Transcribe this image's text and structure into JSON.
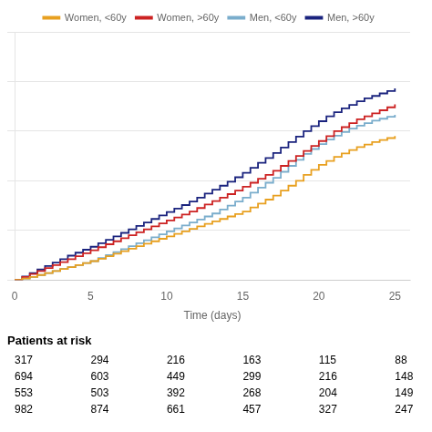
{
  "chart_data": {
    "type": "line",
    "line_style": "step",
    "xlabel": "Time (days)",
    "x": [
      0,
      0.5,
      1.0,
      1.5,
      2.0,
      2.5,
      3.0,
      3.5,
      4.0,
      4.5,
      5.0,
      5.5,
      6.0,
      6.5,
      7.0,
      7.5,
      8.0,
      8.5,
      9.0,
      9.5,
      10.0,
      10.5,
      11.0,
      11.5,
      12.0,
      12.5,
      13.0,
      13.5,
      14.0,
      14.5,
      15.0,
      15.5,
      16.0,
      16.5,
      17.0,
      17.5,
      18.0,
      18.5,
      19.0,
      19.5,
      20.0,
      20.5,
      21.0,
      21.5,
      22.0,
      22.5,
      23.0,
      23.5,
      24.0,
      24.5,
      25.0
    ],
    "series": [
      {
        "name": "Women, <60y",
        "color": "#E8A020",
        "values": [
          0,
          0.003,
          0.006,
          0.01,
          0.014,
          0.018,
          0.022,
          0.026,
          0.03,
          0.034,
          0.038,
          0.043,
          0.048,
          0.053,
          0.058,
          0.063,
          0.068,
          0.073,
          0.078,
          0.083,
          0.088,
          0.093,
          0.098,
          0.103,
          0.108,
          0.113,
          0.118,
          0.123,
          0.128,
          0.133,
          0.138,
          0.146,
          0.154,
          0.162,
          0.17,
          0.18,
          0.19,
          0.2,
          0.212,
          0.222,
          0.232,
          0.24,
          0.248,
          0.255,
          0.262,
          0.268,
          0.273,
          0.278,
          0.282,
          0.286,
          0.29
        ]
      },
      {
        "name": "Women, >60y",
        "color": "#CC2222",
        "values": [
          0,
          0.006,
          0.012,
          0.018,
          0.024,
          0.03,
          0.036,
          0.042,
          0.048,
          0.054,
          0.06,
          0.066,
          0.072,
          0.078,
          0.084,
          0.09,
          0.096,
          0.102,
          0.108,
          0.114,
          0.12,
          0.126,
          0.132,
          0.138,
          0.145,
          0.152,
          0.159,
          0.166,
          0.173,
          0.18,
          0.188,
          0.196,
          0.204,
          0.212,
          0.22,
          0.23,
          0.24,
          0.25,
          0.26,
          0.27,
          0.28,
          0.29,
          0.3,
          0.308,
          0.316,
          0.324,
          0.33,
          0.336,
          0.342,
          0.348,
          0.354
        ]
      },
      {
        "name": "Men, <60y",
        "color": "#7AADCC",
        "values": [
          0,
          0.003,
          0.006,
          0.01,
          0.014,
          0.018,
          0.022,
          0.026,
          0.03,
          0.034,
          0.038,
          0.044,
          0.05,
          0.056,
          0.062,
          0.068,
          0.074,
          0.08,
          0.086,
          0.092,
          0.098,
          0.104,
          0.11,
          0.116,
          0.122,
          0.128,
          0.134,
          0.142,
          0.15,
          0.158,
          0.166,
          0.176,
          0.186,
          0.196,
          0.206,
          0.218,
          0.23,
          0.242,
          0.254,
          0.264,
          0.274,
          0.283,
          0.291,
          0.298,
          0.305,
          0.311,
          0.316,
          0.321,
          0.325,
          0.329,
          0.333
        ]
      },
      {
        "name": "Men, >60y",
        "color": "#1A237E",
        "values": [
          0,
          0.007,
          0.014,
          0.021,
          0.028,
          0.035,
          0.042,
          0.049,
          0.055,
          0.061,
          0.067,
          0.074,
          0.081,
          0.088,
          0.095,
          0.102,
          0.109,
          0.116,
          0.123,
          0.13,
          0.137,
          0.144,
          0.151,
          0.158,
          0.166,
          0.174,
          0.182,
          0.19,
          0.198,
          0.207,
          0.216,
          0.226,
          0.236,
          0.246,
          0.256,
          0.267,
          0.278,
          0.289,
          0.3,
          0.31,
          0.32,
          0.33,
          0.338,
          0.346,
          0.353,
          0.36,
          0.366,
          0.371,
          0.376,
          0.381,
          0.386
        ]
      }
    ],
    "xlim": [
      0,
      26
    ],
    "xticks": [
      0,
      5,
      10,
      15,
      20,
      25
    ],
    "ylim": [
      0,
      0.5
    ],
    "yticks": [
      0,
      0.1,
      0.2,
      0.3,
      0.4,
      0.5
    ],
    "tick_labels": "x",
    "grid": true,
    "legend": "top",
    "risk_table_title": "Patients at risk",
    "risk_table": [
      [
        317,
        294,
        216,
        163,
        115,
        88
      ],
      [
        694,
        603,
        449,
        299,
        216,
        148
      ],
      [
        553,
        503,
        392,
        268,
        204,
        149
      ],
      [
        982,
        874,
        661,
        457,
        327,
        247
      ]
    ]
  }
}
